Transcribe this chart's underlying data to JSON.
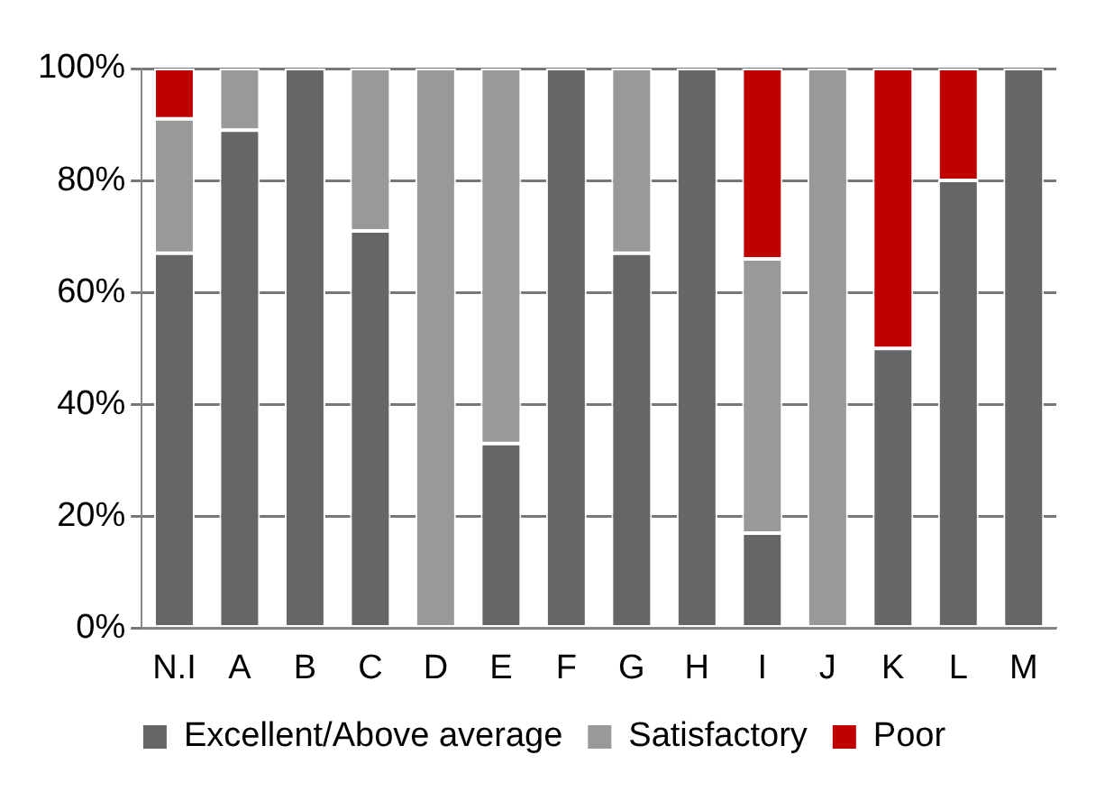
{
  "chart_data": {
    "type": "bar",
    "stacked": true,
    "categories": [
      "N.I",
      "A",
      "B",
      "C",
      "D",
      "E",
      "F",
      "G",
      "H",
      "I",
      "J",
      "K",
      "L",
      "M"
    ],
    "series": [
      {
        "name": "Excellent/Above average",
        "color": "#666666",
        "values": [
          67,
          89,
          100,
          71,
          0,
          33,
          100,
          67,
          100,
          17,
          0,
          50,
          80,
          100
        ]
      },
      {
        "name": "Satisfactory",
        "color": "#999999",
        "values": [
          24,
          11,
          0,
          29,
          100,
          67,
          0,
          33,
          0,
          49,
          100,
          0,
          0,
          0
        ]
      },
      {
        "name": "Poor",
        "color": "#c00000",
        "values": [
          9,
          0,
          0,
          0,
          0,
          0,
          0,
          0,
          0,
          34,
          0,
          50,
          20,
          0
        ]
      }
    ],
    "ylim": [
      0,
      100
    ],
    "yticks": [
      {
        "value": 0,
        "label": "0%"
      },
      {
        "value": 20,
        "label": "20%"
      },
      {
        "value": 40,
        "label": "40%"
      },
      {
        "value": 60,
        "label": "60%"
      },
      {
        "value": 80,
        "label": "80%"
      },
      {
        "value": 100,
        "label": "100%"
      }
    ],
    "grid": "y",
    "legend": "bottom"
  }
}
